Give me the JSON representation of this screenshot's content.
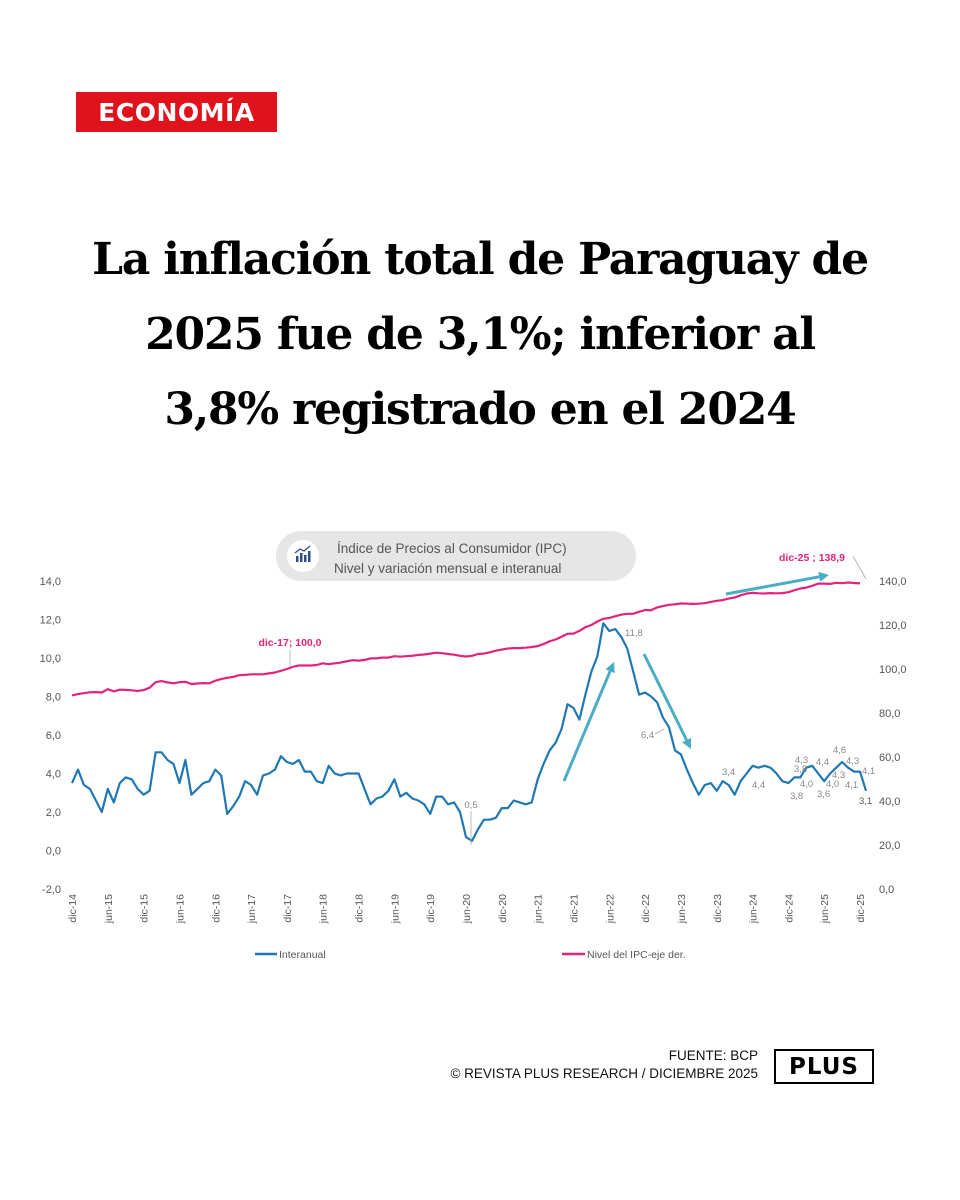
{
  "section_tag": "ECONOMÍA",
  "headline": {
    "lines": [
      "La inflación total de Paraguay de",
      "2025 fue de 3,1%; inferior al",
      "3,8% registrado en el 2024"
    ]
  },
  "footer": {
    "source": "FUENTE: BCP",
    "credit": "© REVISTA PLUS RESEARCH / DICIEMBRE 2025",
    "logo": "PLUS"
  },
  "colors": {
    "brand_red": "#e0121b",
    "interanual": "#1f78b4",
    "nivel_ipc": "#e2237a",
    "arrow": "#4bacc6"
  },
  "chart_data": {
    "type": "line",
    "title": "Índice de Precios al Consumidor (IPC)",
    "subtitle": "Nivel y variación mensual e interanual",
    "title_icon": "chart-icon",
    "xlabel": "",
    "ylabel_left": "",
    "ylabel_right": "",
    "ylim_left": [
      -2,
      14
    ],
    "ylim_right": [
      0,
      140
    ],
    "yticks_left": [
      "-2,0",
      "0,0",
      "2,0",
      "4,0",
      "6,0",
      "8,0",
      "10,0",
      "12,0",
      "14,0"
    ],
    "yticks_right": [
      "0,0",
      "20,0",
      "40,0",
      "60,0",
      "80,0",
      "100,0",
      "120,0",
      "140,0"
    ],
    "x_tick_labels": [
      "dic-14",
      "jun-15",
      "dic-15",
      "jun-16",
      "dic-16",
      "jun-17",
      "dic-17",
      "jun-18",
      "dic-18",
      "jun-19",
      "dic-19",
      "jun-20",
      "dic-20",
      "jun-21",
      "dic-21",
      "jun-22",
      "dic-22",
      "jun-23",
      "dic-23",
      "jun-24",
      "dic-24",
      "jun-25",
      "dic-25"
    ],
    "x_start": "dic-14",
    "x_end": "dic-25",
    "frequency": "monthly",
    "grid": false,
    "legend_position": "bottom",
    "series": [
      {
        "name": "Interanual",
        "axis": "left",
        "values": [
          3.5,
          4.2,
          3.4,
          3.2,
          2.6,
          2.0,
          3.2,
          2.5,
          3.5,
          3.8,
          3.7,
          3.2,
          2.9,
          3.1,
          5.1,
          5.1,
          4.7,
          4.5,
          3.5,
          4.7,
          2.9,
          3.2,
          3.5,
          3.6,
          4.2,
          3.9,
          1.9,
          2.3,
          2.8,
          3.6,
          3.4,
          2.9,
          3.9,
          4.0,
          4.2,
          4.9,
          4.6,
          4.5,
          4.7,
          4.1,
          4.1,
          3.6,
          3.5,
          4.4,
          4.0,
          3.9,
          4.0,
          4.0,
          4.0,
          3.2,
          2.4,
          2.7,
          2.8,
          3.1,
          3.7,
          2.8,
          3.0,
          2.7,
          2.6,
          2.4,
          1.9,
          2.8,
          2.8,
          2.4,
          2.5,
          2.0,
          0.7,
          0.5,
          1.1,
          1.6,
          1.6,
          1.7,
          2.2,
          2.2,
          2.6,
          2.5,
          2.4,
          2.5,
          3.7,
          4.5,
          5.2,
          5.6,
          6.3,
          7.6,
          7.4,
          6.8,
          8.1,
          9.3,
          10.1,
          11.8,
          11.4,
          11.5,
          11.1,
          10.5,
          9.3,
          8.1,
          8.2,
          8.0,
          7.7,
          6.9,
          6.4,
          5.2,
          5.0,
          4.2,
          3.5,
          2.9,
          3.4,
          3.5,
          3.1,
          3.6,
          3.4,
          2.9,
          3.6,
          4.0,
          4.4,
          4.3,
          4.4,
          4.3,
          4.0,
          3.6,
          3.5,
          3.8,
          3.8,
          4.3,
          4.4,
          4.0,
          3.6,
          4.0,
          4.3,
          4.6,
          4.3,
          4.1,
          4.1,
          3.1
        ]
      },
      {
        "name": "Nivel del IPC-eje der.",
        "axis": "right",
        "values": [
          88.0,
          88.6,
          89.0,
          89.4,
          89.5,
          89.3,
          90.8,
          89.8,
          90.6,
          90.5,
          90.3,
          90.0,
          90.4,
          91.5,
          94.0,
          94.5,
          93.9,
          93.5,
          94.0,
          94.2,
          93.2,
          93.4,
          93.6,
          93.5,
          94.7,
          95.4,
          96.0,
          96.4,
          97.2,
          97.3,
          97.6,
          97.6,
          97.6,
          98.0,
          98.4,
          99.2,
          100.0,
          101.0,
          101.6,
          101.6,
          101.6,
          101.8,
          102.6,
          102.2,
          102.6,
          102.9,
          103.5,
          104.0,
          103.8,
          104.1,
          104.8,
          104.8,
          105.2,
          105.2,
          105.8,
          105.6,
          105.8,
          106.0,
          106.4,
          106.6,
          107.0,
          107.4,
          107.2,
          106.8,
          106.5,
          106.0,
          105.7,
          106.0,
          106.8,
          107.0,
          107.6,
          108.3,
          108.8,
          109.3,
          109.5,
          109.5,
          109.7,
          110.0,
          110.4,
          111.3,
          112.6,
          113.4,
          114.7,
          116.0,
          116.1,
          117.3,
          119.0,
          120.0,
          121.6,
          122.8,
          123.2,
          124.0,
          124.7,
          125.1,
          125.1,
          126.0,
          126.8,
          126.7,
          128.0,
          128.6,
          129.2,
          129.4,
          129.8,
          129.7,
          129.6,
          129.7,
          129.9,
          130.5,
          131.0,
          131.3,
          132.0,
          132.5,
          133.5,
          134.3,
          134.6,
          134.4,
          134.3,
          134.5,
          134.4,
          134.5,
          134.9,
          135.8,
          136.6,
          137.0,
          137.8,
          138.8,
          138.8,
          138.7,
          139.2,
          139.0,
          139.3,
          139.1,
          138.9
        ]
      }
    ],
    "annotations": [
      {
        "text": "dic-17; 100,0",
        "series": "Nivel del IPC-eje der.",
        "at": "dic-17"
      },
      {
        "text": "dic-25 ; 138,9",
        "series": "Nivel del IPC-eje der.",
        "at": "dic-25"
      },
      {
        "text": "0,5",
        "series": "Interanual",
        "at": "jul-20"
      },
      {
        "text": "11,8",
        "series": "Interanual",
        "at": "may-22"
      },
      {
        "text": "6,4",
        "series": "Interanual",
        "at": "abr-23"
      },
      {
        "text": "3,4",
        "series": "Interanual",
        "at": "nov-23"
      },
      {
        "text": "4,4",
        "series": "Interanual",
        "at": "jun-24"
      },
      {
        "text": "3,8",
        "series": "Interanual",
        "at": "dic-24"
      },
      {
        "text": "3,8",
        "series": "Interanual",
        "at": "ene-25"
      },
      {
        "text": "4,3",
        "series": "Interanual",
        "at": "mar-25"
      },
      {
        "text": "4,0",
        "series": "Interanual",
        "at": "mar-25b"
      },
      {
        "text": "4,4",
        "series": "Interanual",
        "at": "abr-25"
      },
      {
        "text": "3,6",
        "series": "Interanual",
        "at": "jun-25"
      },
      {
        "text": "4,0",
        "series": "Interanual",
        "at": "jul-25"
      },
      {
        "text": "4,6",
        "series": "Interanual",
        "at": "sep-25"
      },
      {
        "text": "4,3",
        "series": "Interanual",
        "at": "ago-25"
      },
      {
        "text": "4,3",
        "series": "Interanual",
        "at": "oct-25"
      },
      {
        "text": "4,1",
        "series": "Interanual",
        "at": "nov-25"
      },
      {
        "text": "4,1",
        "series": "Interanual",
        "at": "nov-25b"
      },
      {
        "text": "3,1",
        "series": "Interanual",
        "at": "dic-25"
      }
    ],
    "trend_arrows": [
      "up",
      "down",
      "up"
    ]
  }
}
